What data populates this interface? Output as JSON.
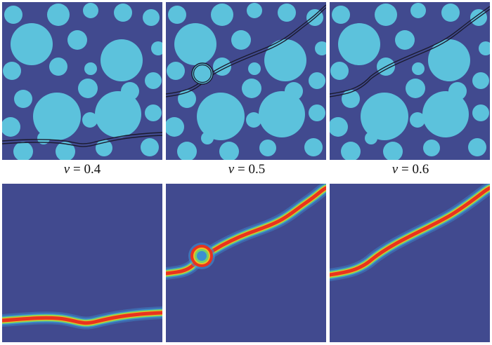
{
  "colors": {
    "matrix": "#414a8f",
    "inclusion": "#5cc2dc",
    "crack_line": "#1b1b2e",
    "field_background": "#414a8f",
    "field_outer": "#3c8fd0",
    "field_mid": "#73d16b",
    "field_edge": "#f0c020",
    "field_core": "#e8331f"
  },
  "variable_symbol": "v",
  "equals": "= ",
  "panels": [
    {
      "v": "0.4",
      "circle_crack": false
    },
    {
      "v": "0.5",
      "circle_crack": true
    },
    {
      "v": "0.6",
      "circle_crack": false
    }
  ]
}
